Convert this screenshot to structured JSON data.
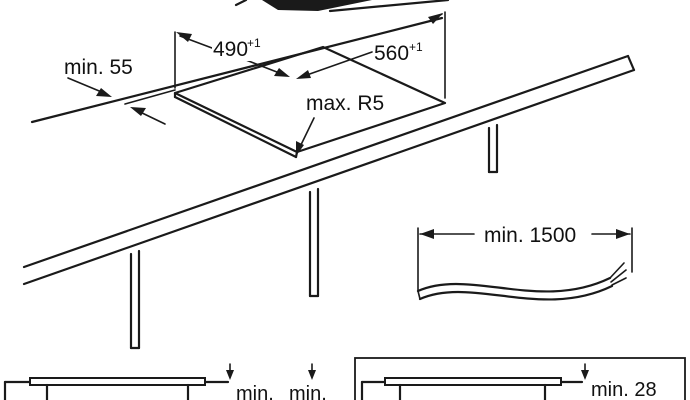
{
  "labels": {
    "front_clearance": "min. 55",
    "cutout_depth": "490",
    "cutout_depth_tol": "+1",
    "cutout_width": "560",
    "cutout_width_tol": "+1",
    "corner_radius": "max. R5",
    "cable_length": "min. 1500",
    "left_clearance_a": "min.",
    "left_clearance_b": "min.",
    "right_clearance": "min. 28"
  }
}
